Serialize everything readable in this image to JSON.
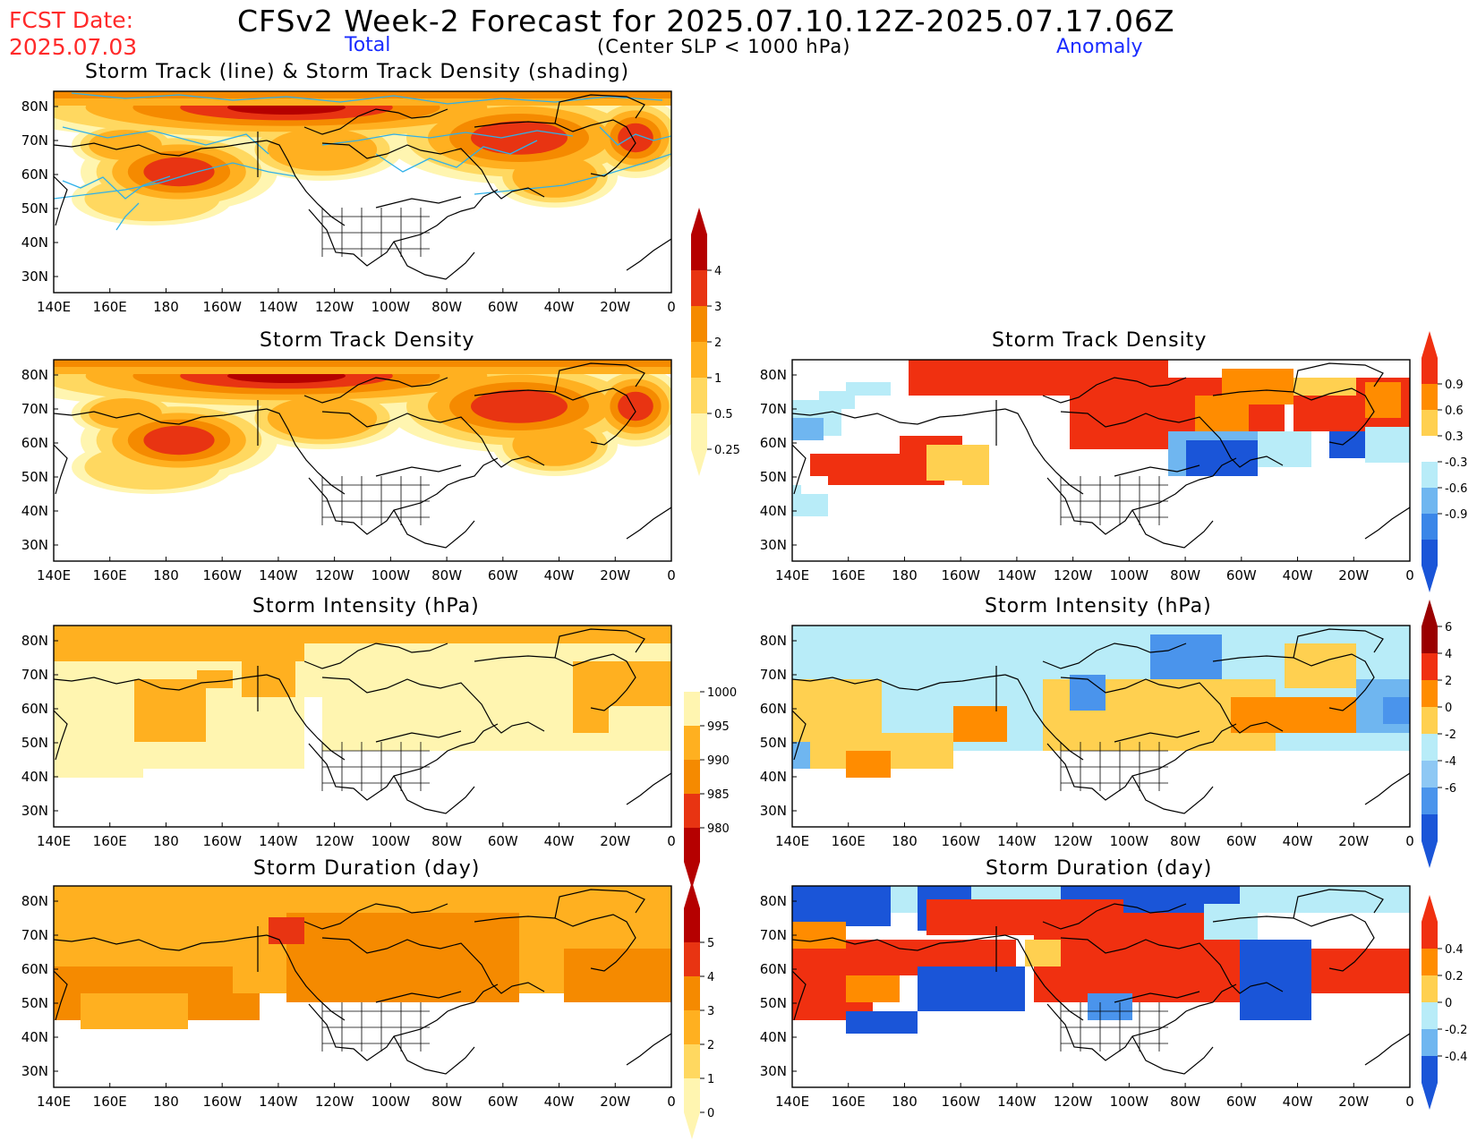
{
  "header": {
    "fcst_date_label": "FCST Date:",
    "fcst_date_value": "2025.07.03",
    "title": "CFSv2 Week-2 Forecast for 2025.07.10.12Z-2025.07.17.06Z",
    "total_label": "Total",
    "anomaly_label": "Anomaly",
    "subtitle": "(Center SLP < 1000 hPa)"
  },
  "axes": {
    "lon_labels": [
      "140E",
      "160E",
      "180",
      "160W",
      "140W",
      "120W",
      "100W",
      "80W",
      "60W",
      "40W",
      "20W",
      "0"
    ],
    "lat_labels": [
      "80N",
      "70N",
      "60N",
      "50N",
      "40N",
      "30N"
    ]
  },
  "panels": {
    "track": {
      "title": "Storm Track (line) & Storm Track Density (shading)"
    },
    "density_total": {
      "title": "Storm Track Density"
    },
    "density_anom": {
      "title": "Storm Track Density"
    },
    "intensity_total": {
      "title": "Storm Intensity (hPa)"
    },
    "intensity_anom": {
      "title": "Storm Intensity (hPa)"
    },
    "duration_total": {
      "title": "Storm Duration (day)"
    },
    "duration_anom": {
      "title": "Storm Duration (day)"
    }
  },
  "colorbars": {
    "density_total": {
      "labels": [
        "4",
        "3",
        "2",
        "1",
        "0.5",
        "0.25"
      ],
      "colors": [
        "#b50000",
        "#e83412",
        "#f58a00",
        "#ffb020",
        "#ffd860",
        "#fff5b0"
      ]
    },
    "density_anom": {
      "labels": [
        "0.9",
        "0.6",
        "0.3",
        "-0.3",
        "-0.6",
        "-0.9"
      ],
      "colors": [
        "#f03010",
        "#ff8c00",
        "#ffd050",
        "#ffffff",
        "#b8ecf8",
        "#6fb6f0",
        "#3a86e8",
        "#1a55d8"
      ]
    },
    "intensity_total": {
      "labels": [
        "1000",
        "995",
        "990",
        "985",
        "980"
      ],
      "colors": [
        "#ffffff",
        "#fff5b0",
        "#ffb020",
        "#f58a00",
        "#e83412",
        "#b50000"
      ]
    },
    "intensity_anom": {
      "labels": [
        "6",
        "4",
        "2",
        "0",
        "-2",
        "-4",
        "-6"
      ],
      "colors": [
        "#9a0000",
        "#f03010",
        "#ff8c00",
        "#ffd050",
        "#b8ecf8",
        "#8ec8f4",
        "#4a94ec",
        "#1a55d8"
      ]
    },
    "duration_total": {
      "labels": [
        "5",
        "4",
        "3",
        "2",
        "1",
        "0"
      ],
      "colors": [
        "#b50000",
        "#e83412",
        "#f58a00",
        "#ffb020",
        "#ffd860",
        "#fff5b0"
      ]
    },
    "duration_anom": {
      "labels": [
        "0.4",
        "0.2",
        "0",
        "-0.2",
        "-0.4"
      ],
      "colors": [
        "#f03010",
        "#ff8c00",
        "#ffd050",
        "#b8ecf8",
        "#6fb6f0",
        "#1a55d8"
      ]
    }
  }
}
